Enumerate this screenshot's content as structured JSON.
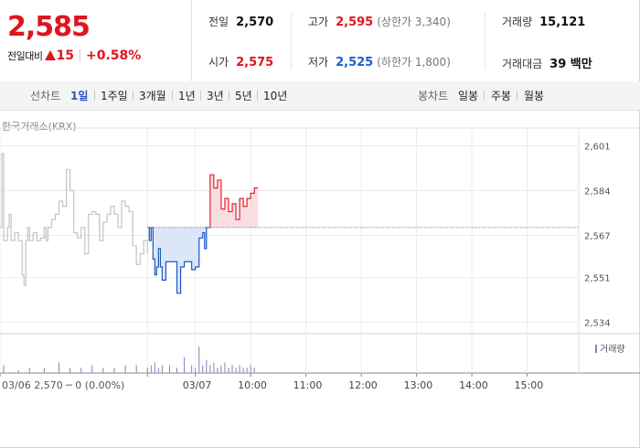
{
  "summary": {
    "price": "2,585",
    "change_label": "전일대비",
    "change_value": "15",
    "change_pct": "+0.58%",
    "prev_label": "전일",
    "prev_value": "2,570",
    "high_label": "고가",
    "high_value": "2,595",
    "upper_limit": "(상한가 3,340)",
    "volume_label": "거래량",
    "volume_value": "15,121",
    "open_label": "시가",
    "open_value": "2,575",
    "low_label": "저가",
    "low_value": "2,525",
    "lower_limit": "(하한가 1,800)",
    "amount_label": "거래대금",
    "amount_value": "39 백만"
  },
  "period_bar": {
    "line_title": "선차트",
    "line_periods": [
      "1일",
      "1주일",
      "3개월",
      "1년",
      "3년",
      "5년",
      "10년"
    ],
    "active_period": "1일",
    "candle_title": "봉차트",
    "candle_periods": [
      "일봉",
      "주봉",
      "월봉"
    ]
  },
  "chart_meta": {
    "source": "한국거래소(KRX)",
    "volume_legend": "거래량",
    "footer_info": "03/06  2,570 ─ 0 (0.00%)",
    "colors": {
      "up": "#e8202a",
      "up_fill": "#f9dfe1",
      "down": "#1a57c6",
      "down_fill": "#dbe6f7",
      "prev_day": "#c4c4c4",
      "baseline": "#555555",
      "volume": "#8a7fc0"
    }
  },
  "chart_data": {
    "type": "line",
    "title": "",
    "xlabel": "",
    "ylabel": "",
    "ylim": [
      2530,
      2605
    ],
    "yticks": [
      2534,
      2551,
      2567,
      2584,
      2601
    ],
    "ytick_labels": [
      "2,534",
      "2,551",
      "2,567",
      "2,584",
      "2,601"
    ],
    "baseline": 2570,
    "xlim": [
      0,
      157
    ],
    "xticks": [
      0,
      40,
      53,
      68,
      83,
      98,
      113,
      128,
      143
    ],
    "xtick_labels": [
      "03/06",
      "03/07",
      "10:00",
      "11:00",
      "12:00",
      "13:00",
      "14:00",
      "15:00"
    ],
    "xtick_label_positions": [
      0,
      53,
      68,
      83,
      98,
      113,
      128,
      143
    ],
    "series": [
      {
        "name": "03/06",
        "x": [
          0,
          0.5,
          1,
          2,
          2.5,
          3,
          4,
          5,
          6,
          6.5,
          7,
          7.5,
          8,
          9,
          10,
          11,
          12,
          12.5,
          13,
          14,
          15,
          16,
          17,
          18,
          19,
          20,
          21,
          22,
          23,
          24,
          25,
          26,
          27,
          28,
          29,
          30,
          31,
          32,
          33,
          34,
          35,
          36,
          37,
          38,
          39,
          40
        ],
        "y": [
          2570,
          2598,
          2565,
          2570,
          2575,
          2565,
          2568,
          2565,
          2552,
          2548,
          2565,
          2570,
          2565,
          2568,
          2565,
          2566,
          2570,
          2565,
          2570,
          2573,
          2575,
          2580,
          2578,
          2592,
          2584,
          2568,
          2566,
          2570,
          2560,
          2575,
          2576,
          2575,
          2565,
          2572,
          2575,
          2578,
          2575,
          2570,
          2580,
          2578,
          2576,
          2563,
          2556,
          2560,
          2565,
          2560
        ]
      },
      {
        "name": "03/07",
        "x": [
          40,
          40.5,
          41,
          41.5,
          42,
          42.5,
          43,
          43.5,
          44,
          45,
          46,
          47,
          48,
          49,
          50,
          51,
          52,
          53,
          54,
          55,
          55.5,
          56,
          57,
          58,
          59,
          60,
          61,
          62,
          63,
          64,
          65,
          66,
          67,
          68,
          69,
          70
        ],
        "y": [
          2570,
          2565,
          2570,
          2558,
          2552,
          2555,
          2562,
          2555,
          2550,
          2557,
          2557,
          2557,
          2545,
          2555,
          2557,
          2557,
          2554,
          2555,
          2566,
          2568,
          2562,
          2570,
          2590,
          2585,
          2588,
          2577,
          2581,
          2576,
          2579,
          2573,
          2581,
          2578,
          2581,
          2583,
          2585,
          2585
        ]
      }
    ],
    "volume": {
      "x": [
        1,
        5,
        8,
        12,
        16,
        19,
        22,
        25,
        28,
        31,
        34,
        37,
        40,
        41,
        42,
        43,
        44,
        46,
        48,
        50,
        52,
        53,
        54,
        55,
        56,
        57,
        58,
        59,
        60,
        61,
        62,
        63,
        64,
        65,
        66,
        67,
        68,
        69
      ],
      "values": [
        3,
        1,
        2,
        2,
        4,
        2,
        2,
        3,
        2,
        2,
        3,
        3,
        2,
        3,
        4,
        2,
        3,
        3,
        2,
        6,
        3,
        2,
        10,
        3,
        5,
        3,
        4,
        2,
        3,
        4,
        2,
        3,
        2,
        3,
        2,
        2,
        3,
        2
      ]
    }
  }
}
